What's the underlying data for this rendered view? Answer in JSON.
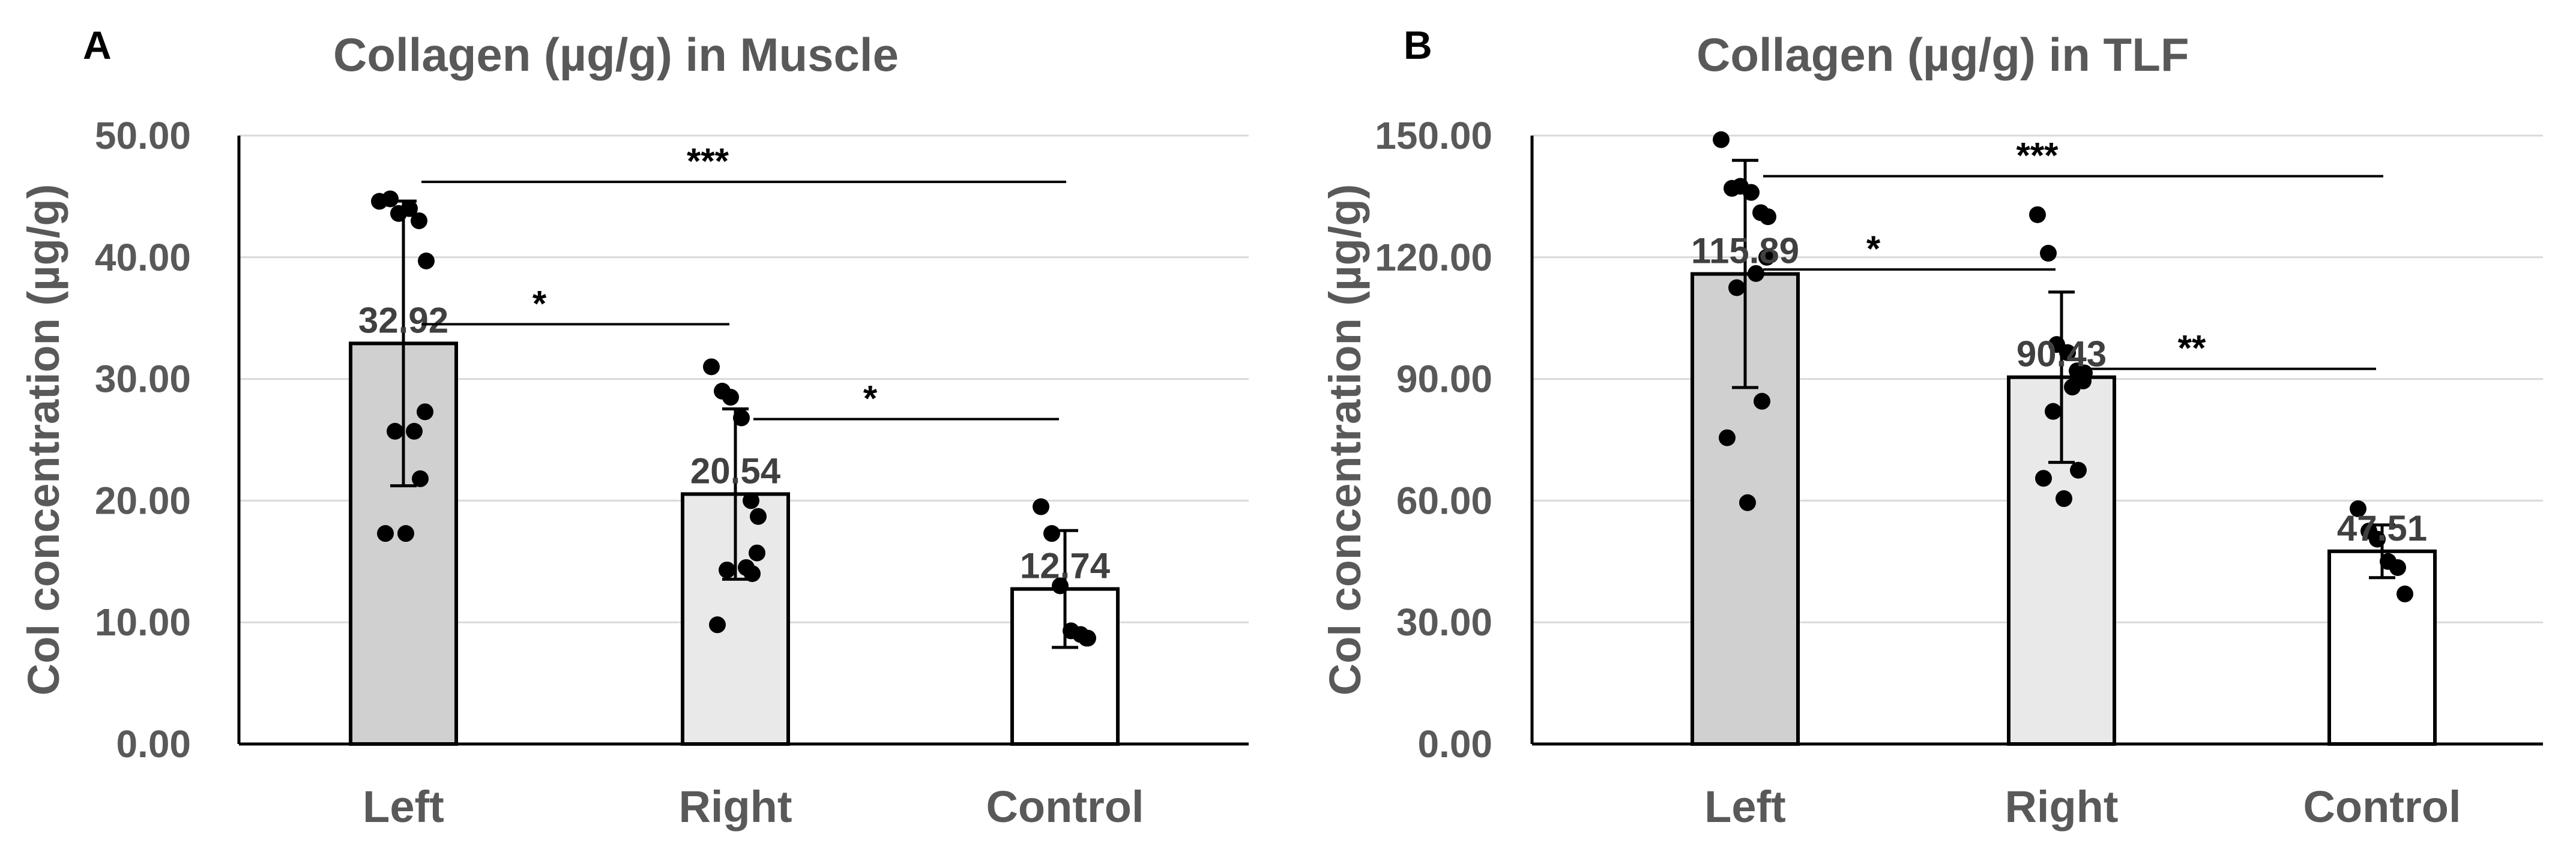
{
  "chart_data": [
    {
      "panel": "A",
      "type": "bar",
      "title": "Collagen (µg/g) in Muscle",
      "ylabel": "Col concentration (µg/g)",
      "xlabel": "",
      "categories": [
        "Left",
        "Right",
        "Control"
      ],
      "values": [
        32.92,
        20.54,
        12.74
      ],
      "value_labels": [
        "32.92",
        "20.54",
        "12.74"
      ],
      "error": [
        11.7,
        7.0,
        4.8
      ],
      "ylim": [
        0,
        50
      ],
      "yticks": [
        0,
        10,
        20,
        30,
        40,
        50
      ],
      "ytick_labels": [
        "0.00",
        "10.00",
        "20.00",
        "30.00",
        "40.00",
        "50.00"
      ],
      "bar_colors": [
        "#d0d0d0",
        "#e9e9e9",
        "#ffffff"
      ],
      "points": [
        [
          44.6,
          44.8,
          43.6,
          44.0,
          43.0,
          39.7,
          27.3,
          25.7,
          25.7,
          21.8,
          17.3,
          17.3
        ],
        [
          31.0,
          29.0,
          28.5,
          26.8,
          20.0,
          18.7,
          15.7,
          14.5,
          14.3,
          14.0,
          9.8
        ],
        [
          19.5,
          17.3,
          13.0,
          9.3,
          9.0,
          8.7,
          8.7
        ]
      ],
      "significance": [
        {
          "from": 0,
          "to": 2,
          "level": 46.2,
          "label": "***"
        },
        {
          "from": 0,
          "to": 1,
          "level": 34.5,
          "label": "*"
        },
        {
          "from": 1,
          "to": 2,
          "level": 26.7,
          "label": "*"
        }
      ],
      "grid": true
    },
    {
      "panel": "B",
      "type": "bar",
      "title": "Collagen (µg/g) in TLF",
      "ylabel": "Col concentration (µg/g)",
      "xlabel": "",
      "categories": [
        "Left",
        "Right",
        "Control"
      ],
      "values": [
        115.89,
        90.43,
        47.51
      ],
      "value_labels": [
        "115.89",
        "90.43",
        "47.51"
      ],
      "error": [
        28.0,
        21.0,
        6.5
      ],
      "ylim": [
        0,
        150
      ],
      "yticks": [
        0,
        30,
        60,
        90,
        120,
        150
      ],
      "ytick_labels": [
        "0.00",
        "30.00",
        "60.00",
        "90.00",
        "120.00",
        "150.00"
      ],
      "bar_colors": [
        "#d0d0d0",
        "#e9e9e9",
        "#ffffff"
      ],
      "points": [
        [
          149.0,
          137.0,
          137.5,
          136.0,
          131.0,
          130.0,
          120.0,
          116.0,
          112.5,
          84.5,
          75.5,
          59.5
        ],
        [
          130.5,
          121.0,
          98.5,
          96.5,
          92.0,
          91.5,
          89.5,
          88.0,
          82.0,
          67.5,
          65.5,
          60.5
        ],
        [
          58.0,
          52.5,
          50.5,
          45.0,
          43.5,
          37.0
        ]
      ],
      "significance": [
        {
          "from": 0,
          "to": 2,
          "level": 140.0,
          "label": "***"
        },
        {
          "from": 0,
          "to": 1,
          "level": 117.0,
          "label": "*"
        },
        {
          "from": 1,
          "to": 2,
          "level": 92.5,
          "label": "**"
        }
      ],
      "grid": true
    }
  ]
}
